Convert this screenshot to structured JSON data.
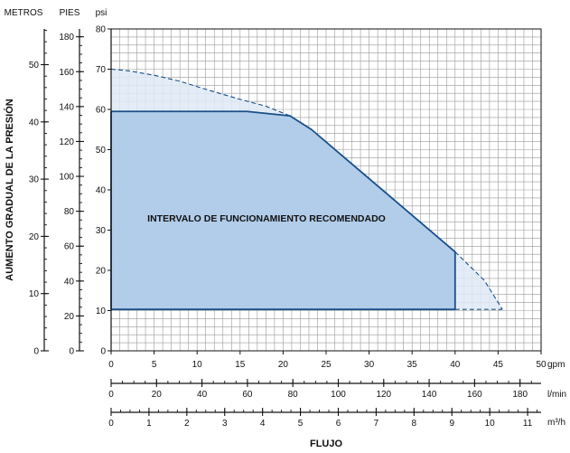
{
  "chart_data": {
    "type": "area",
    "title": "",
    "ylabel": "AUMENTO GRADUAL DE LA PRESIÓN",
    "xlabel": "FLUJO",
    "region_label": "INTERVALO DE FUNCIONAMIENTO RECOMENDADO",
    "y_axes": {
      "metros": {
        "header": "METROS",
        "range": [
          0,
          56.24
        ],
        "major": [
          0,
          10,
          20,
          30,
          40,
          50
        ],
        "minor_step": 2
      },
      "pies": {
        "header": "PIES",
        "range": [
          0,
          184.5
        ],
        "major": [
          0,
          20,
          40,
          60,
          80,
          100,
          120,
          140,
          160,
          180
        ],
        "minor_step": 5
      },
      "psi": {
        "header": "psi",
        "range": [
          0,
          80
        ],
        "major": [
          0,
          10,
          20,
          30,
          40,
          50,
          60,
          70,
          80
        ],
        "grid_step": 2
      }
    },
    "x_axes": {
      "gpm": {
        "unit": "gpm",
        "range": [
          0,
          50
        ],
        "major": [
          0,
          5,
          10,
          15,
          20,
          25,
          30,
          35,
          40,
          45,
          50
        ],
        "grid_step": 1
      },
      "lmin": {
        "unit": "l/min",
        "range": [
          0,
          189.27
        ],
        "major": [
          0,
          20,
          40,
          60,
          80,
          100,
          120,
          140,
          160,
          180
        ],
        "minor_step": 5
      },
      "m3h": {
        "unit": "m³/h",
        "range": [
          0,
          11.356
        ],
        "major": [
          0,
          1,
          2,
          3,
          4,
          5,
          6,
          7,
          8,
          9,
          10,
          11
        ],
        "minor_step": 0.25
      }
    },
    "grid": true,
    "series": [
      {
        "role": "max_envelope",
        "style": "dashed",
        "points": [
          [
            0,
            70
          ],
          [
            2,
            69.6
          ],
          [
            5,
            68.5
          ],
          [
            8,
            67
          ],
          [
            11,
            65
          ],
          [
            15,
            62.5
          ],
          [
            18,
            60.8
          ],
          [
            20.8,
            58.4
          ]
        ]
      },
      {
        "role": "max_envelope",
        "style": "dashed",
        "points": [
          [
            40,
            24.6
          ],
          [
            43.4,
            17.5
          ],
          [
            45.5,
            10.3
          ]
        ]
      },
      {
        "role": "recommended_region",
        "style": "solid",
        "points": [
          [
            0,
            10.3
          ],
          [
            0,
            59.5
          ],
          [
            15.8,
            59.5
          ],
          [
            20.8,
            58.4
          ],
          [
            23.3,
            55
          ],
          [
            40,
            24.6
          ],
          [
            40,
            10.3
          ]
        ]
      },
      {
        "role": "min_line",
        "style": "dashed",
        "points": [
          [
            40,
            10.3
          ],
          [
            45.5,
            10.3
          ]
        ]
      }
    ],
    "colors": {
      "region_fill": "#a9c7e8",
      "region_stroke": "#1a4f86",
      "envelope_fill": "#dfeaf6",
      "grid": "#9a9a9a",
      "axis": "#111111"
    }
  }
}
